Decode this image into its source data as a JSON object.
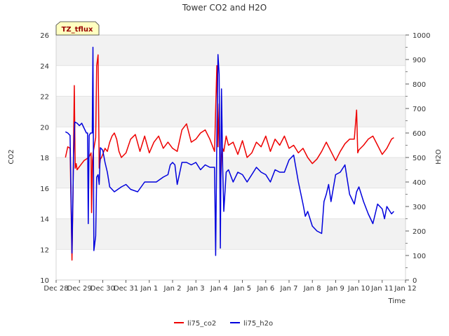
{
  "chart_data": {
    "type": "line",
    "title": "Tower CO2 and H2O",
    "badge": "TZ_tflux",
    "xlabel": "Time",
    "ylabel_left": "CO2",
    "ylabel_right": "H2O",
    "ylim_left": [
      10,
      26
    ],
    "ylim_right": [
      0,
      1000
    ],
    "xlim": [
      0,
      15
    ],
    "left_ticks": [
      10,
      12,
      14,
      16,
      18,
      20,
      22,
      24,
      26
    ],
    "right_ticks": [
      0,
      100,
      200,
      300,
      400,
      500,
      600,
      700,
      800,
      900,
      1000
    ],
    "x_tick_labels": [
      "Dec 28",
      "Dec 29",
      "Dec 30",
      "Dec 31",
      "Jan 1",
      "Jan 2",
      "Jan 3",
      "Jan 4",
      "Jan 5",
      "Jan 6",
      "Jan 7",
      "Jan 8",
      "Jan 9",
      "Jan 10",
      "Jan 11",
      "Jan 12"
    ],
    "grid": true,
    "legend_position": "bottom-center",
    "series": [
      {
        "name": "li75_co2",
        "axis": "left",
        "color": "#ee0000",
        "x": [
          0.4,
          0.5,
          0.6,
          0.68,
          0.72,
          0.78,
          0.82,
          0.86,
          0.9,
          1.0,
          1.2,
          1.4,
          1.5,
          1.52,
          1.56,
          1.6,
          1.7,
          1.74,
          1.8,
          1.85,
          1.9,
          1.95,
          2.0,
          2.1,
          2.2,
          2.3,
          2.4,
          2.5,
          2.6,
          2.7,
          2.8,
          3.0,
          3.2,
          3.4,
          3.6,
          3.8,
          4.0,
          4.2,
          4.4,
          4.6,
          4.8,
          5.0,
          5.2,
          5.4,
          5.6,
          5.8,
          6.0,
          6.2,
          6.4,
          6.6,
          6.8,
          6.9,
          6.95,
          7.0,
          7.05,
          7.1,
          7.15,
          7.2,
          7.3,
          7.4,
          7.6,
          7.8,
          8.0,
          8.2,
          8.4,
          8.6,
          8.8,
          9.0,
          9.2,
          9.4,
          9.6,
          9.8,
          10.0,
          10.2,
          10.4,
          10.6,
          10.8,
          11.0,
          11.2,
          11.4,
          11.6,
          11.8,
          12.0,
          12.2,
          12.4,
          12.6,
          12.8,
          12.9,
          12.95,
          13.0,
          13.2,
          13.4,
          13.6,
          13.8,
          14.0,
          14.2,
          14.4,
          14.5
        ],
        "y": [
          18.0,
          18.7,
          18.6,
          11.3,
          15.0,
          22.7,
          17.3,
          17.6,
          17.2,
          17.4,
          17.8,
          18.0,
          18.3,
          14.4,
          17.8,
          18.4,
          19.3,
          24.0,
          24.7,
          17.3,
          17.9,
          18.0,
          18.2,
          18.6,
          18.4,
          19.0,
          19.4,
          19.6,
          19.2,
          18.4,
          18.0,
          18.3,
          19.2,
          19.5,
          18.4,
          19.4,
          18.3,
          19.0,
          19.4,
          18.6,
          19.0,
          18.6,
          18.4,
          19.8,
          20.2,
          19.0,
          19.2,
          19.6,
          19.8,
          19.2,
          18.4,
          24.0,
          18.7,
          21.5,
          15.6,
          18.0,
          18.6,
          18.4,
          19.4,
          18.8,
          19.0,
          18.2,
          19.1,
          18.0,
          18.3,
          19.0,
          18.7,
          19.4,
          18.4,
          19.2,
          18.8,
          19.4,
          18.6,
          18.8,
          18.3,
          18.6,
          18.0,
          17.6,
          17.9,
          18.4,
          19.0,
          18.4,
          17.8,
          18.4,
          18.9,
          19.2,
          19.2,
          21.1,
          18.3,
          18.5,
          18.8,
          19.2,
          19.4,
          18.8,
          18.2,
          18.6,
          19.2,
          19.3
        ]
      },
      {
        "name": "li75_h2o",
        "axis": "right",
        "color": "#0000dd",
        "x": [
          0.4,
          0.5,
          0.6,
          0.68,
          0.75,
          0.8,
          0.9,
          1.0,
          1.1,
          1.2,
          1.3,
          1.35,
          1.38,
          1.42,
          1.48,
          1.55,
          1.58,
          1.62,
          1.7,
          1.74,
          1.8,
          1.85,
          1.9,
          2.0,
          2.1,
          2.2,
          2.3,
          2.5,
          2.8,
          3.0,
          3.2,
          3.5,
          3.8,
          4.0,
          4.3,
          4.6,
          4.8,
          4.9,
          5.0,
          5.1,
          5.2,
          5.4,
          5.6,
          5.8,
          6.0,
          6.2,
          6.4,
          6.6,
          6.8,
          6.85,
          6.9,
          6.95,
          7.0,
          7.05,
          7.1,
          7.15,
          7.2,
          7.3,
          7.4,
          7.6,
          7.8,
          8.0,
          8.2,
          8.4,
          8.6,
          8.8,
          9.0,
          9.2,
          9.4,
          9.6,
          9.8,
          10.0,
          10.2,
          10.4,
          10.6,
          10.7,
          10.8,
          10.9,
          11.0,
          11.2,
          11.4,
          11.5,
          11.6,
          11.7,
          11.8,
          12.0,
          12.2,
          12.4,
          12.6,
          12.8,
          12.9,
          13.0,
          13.2,
          13.4,
          13.6,
          13.8,
          14.0,
          14.1,
          14.2,
          14.4,
          14.5
        ],
        "y": [
          605,
          600,
          590,
          110,
          510,
          645,
          640,
          630,
          640,
          620,
          600,
          600,
          230,
          590,
          600,
          600,
          950,
          120,
          180,
          420,
          430,
          390,
          540,
          530,
          480,
          440,
          380,
          360,
          380,
          390,
          370,
          360,
          400,
          400,
          400,
          420,
          430,
          470,
          480,
          470,
          390,
          480,
          480,
          470,
          480,
          450,
          470,
          460,
          460,
          100,
          580,
          920,
          840,
          130,
          780,
          460,
          280,
          440,
          450,
          400,
          440,
          430,
          400,
          430,
          460,
          440,
          430,
          400,
          450,
          440,
          440,
          490,
          510,
          400,
          310,
          260,
          280,
          250,
          220,
          200,
          190,
          320,
          350,
          390,
          320,
          430,
          440,
          470,
          350,
          310,
          360,
          380,
          320,
          270,
          230,
          310,
          290,
          250,
          300,
          270,
          280
        ]
      }
    ]
  }
}
